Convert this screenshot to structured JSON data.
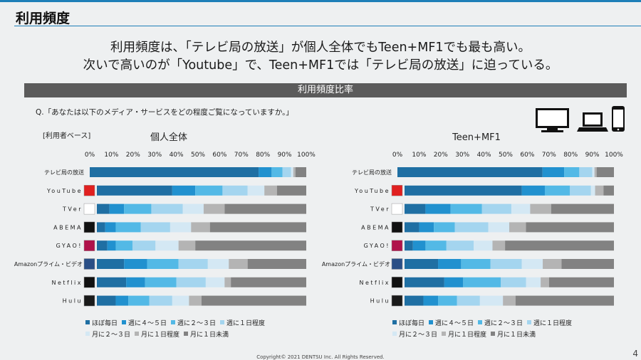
{
  "page_title": "利用頻度",
  "headline": [
    "利用頻度は、「テレビ局の放送」が個人全体でもTeen+MF1でも最も高い。",
    "次いで高いのが「Youtube」で、Teen+MF1では「テレビ局の放送」に迫っている。"
  ],
  "section_title": "利用頻度比率",
  "question": "Q.「あなたは以下のメディア・サービスをどの程度ご覧になっていますか。」",
  "base_label": "[利用者ベース]",
  "copyright": "Copyright© 2021 DENTSU Inc. All Rights Reserved.",
  "page_number": "4",
  "icons": [
    "monitor-icon",
    "laptop-icon",
    "smartphone-icon"
  ],
  "chart_data": [
    {
      "type": "bar",
      "orientation": "horizontal",
      "stacked": true,
      "title": "個人全体",
      "xlim": [
        0,
        100
      ],
      "ticks": [
        "0%",
        "10%",
        "20%",
        "30%",
        "40%",
        "50%",
        "60%",
        "70%",
        "80%",
        "90%",
        "100%"
      ],
      "categories": [
        "テレビ局の放送",
        "YouTube",
        "TVer",
        "ABEMA",
        "GYAO!",
        "Amazonプライム・ビデオ",
        "Netflix",
        "Hulu"
      ],
      "series": [
        {
          "name": "ほぼ毎日",
          "color": "#1f6fa3",
          "values": [
            78,
            36,
            6,
            4,
            5,
            13,
            14,
            9
          ]
        },
        {
          "name": "週に４～５日",
          "color": "#2191cf",
          "values": [
            6,
            11,
            7,
            5,
            4,
            11,
            9,
            6
          ]
        },
        {
          "name": "週に２～３日",
          "color": "#53b9e6",
          "values": [
            5,
            13,
            13,
            12,
            8,
            15,
            15,
            10
          ]
        },
        {
          "name": "週に１日程度",
          "color": "#a4d5ef",
          "values": [
            4,
            12,
            15,
            14,
            11,
            14,
            14,
            11
          ]
        },
        {
          "name": "月に２～３日",
          "color": "#d4e8f4",
          "values": [
            1,
            8,
            10,
            10,
            11,
            10,
            9,
            8
          ]
        },
        {
          "name": "月に１日程度",
          "color": "#b4b4b4",
          "values": [
            1,
            6,
            10,
            9,
            8,
            9,
            3,
            6
          ]
        },
        {
          "name": "月に１日未満",
          "color": "#828282",
          "values": [
            5,
            14,
            39,
            46,
            53,
            28,
            36,
            50
          ]
        }
      ],
      "legend_position": "bottom"
    },
    {
      "type": "bar",
      "orientation": "horizontal",
      "stacked": true,
      "title": "Teen+MF1",
      "xlim": [
        0,
        100
      ],
      "ticks": [
        "0%",
        "10%",
        "20%",
        "30%",
        "40%",
        "50%",
        "60%",
        "70%",
        "80%",
        "90%",
        "100%"
      ],
      "categories": [
        "テレビ局の放送",
        "YouTube",
        "TVer",
        "ABEMA",
        "GYAO!",
        "Amazonプライム・ビデオ",
        "Netflix",
        "Hulu"
      ],
      "series": [
        {
          "name": "ほぼ毎日",
          "color": "#1f6fa3",
          "values": [
            67,
            56,
            10,
            7,
            4,
            16,
            19,
            9
          ]
        },
        {
          "name": "週に４～５日",
          "color": "#2191cf",
          "values": [
            10,
            11,
            12,
            7,
            6,
            11,
            9,
            7
          ]
        },
        {
          "name": "週に２～３日",
          "color": "#53b9e6",
          "values": [
            7,
            12,
            15,
            10,
            10,
            14,
            18,
            9
          ]
        },
        {
          "name": "週に１日程度",
          "color": "#a4d5ef",
          "values": [
            6,
            10,
            14,
            16,
            13,
            15,
            12,
            11
          ]
        },
        {
          "name": "月に２～３日",
          "color": "#d4e8f4",
          "values": [
            1,
            2,
            9,
            10,
            9,
            10,
            7,
            11
          ]
        },
        {
          "name": "月に１日程度",
          "color": "#b4b4b4",
          "values": [
            1,
            4,
            10,
            8,
            6,
            9,
            4,
            6
          ]
        },
        {
          "name": "月に１日未満",
          "color": "#828282",
          "values": [
            8,
            5,
            30,
            42,
            52,
            25,
            31,
            47
          ]
        }
      ],
      "legend_position": "bottom"
    }
  ]
}
